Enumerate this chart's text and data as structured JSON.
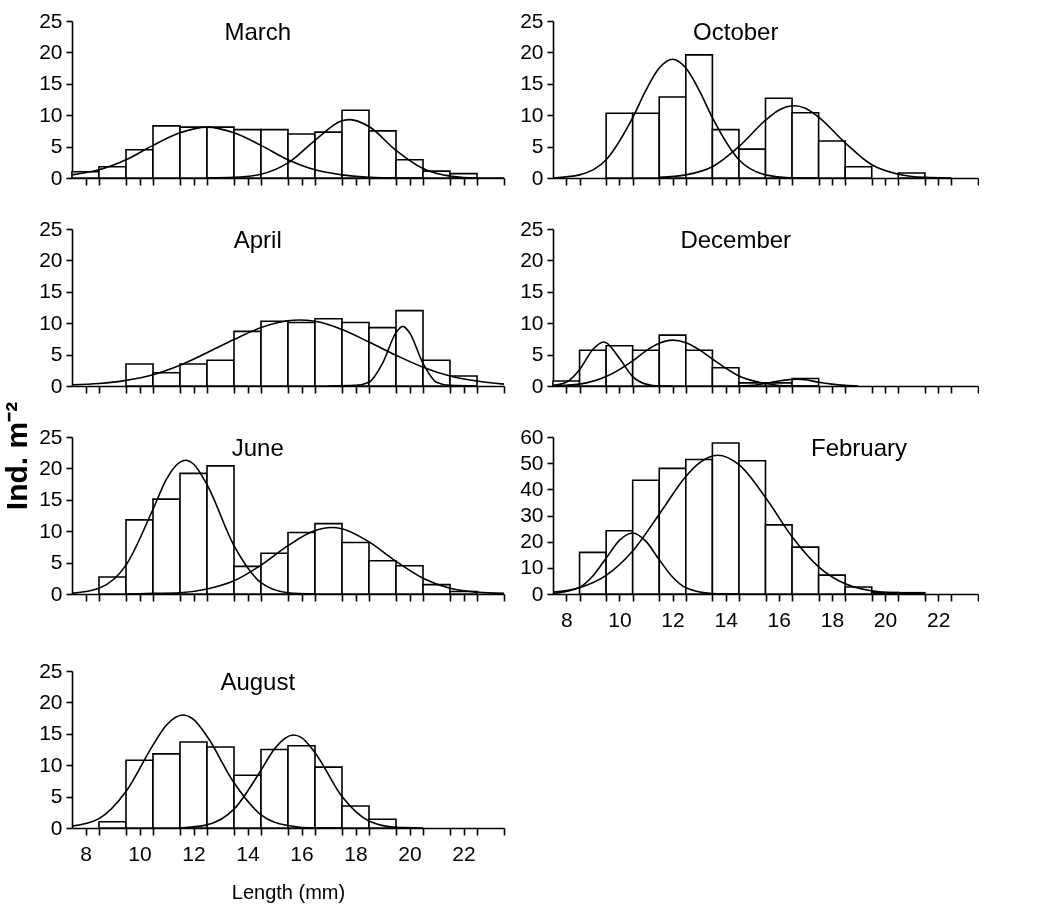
{
  "chart_data": [
    {
      "type": "histogram",
      "title": "March",
      "color": "#ffffff",
      "xlim": [
        7.5,
        23.5
      ],
      "ylim": [
        0,
        25
      ],
      "yticks": [
        0,
        5,
        10,
        15,
        20,
        25
      ],
      "tick_labels": "y",
      "xticks": [
        8,
        10,
        12,
        14,
        16,
        18,
        20,
        22,
        {
          "value": 8.5,
          "label": null
        },
        {
          "value": 9.5,
          "label": null
        },
        {
          "value": 10.5,
          "label": null
        },
        {
          "value": 11.5,
          "label": null
        },
        {
          "value": 12.5,
          "label": null
        },
        {
          "value": 13.5,
          "label": null
        },
        {
          "value": 14.5,
          "label": null
        },
        {
          "value": 15.5,
          "label": null
        },
        {
          "value": 16.5,
          "label": null
        },
        {
          "value": 17.5,
          "label": null
        },
        {
          "value": 18.5,
          "label": null
        },
        {
          "value": 19.5,
          "label": null
        },
        {
          "value": 20.5,
          "label": null
        },
        {
          "value": 21.5,
          "label": null
        },
        {
          "value": 22.5,
          "label": null
        },
        {
          "value": 23.5,
          "label": null
        }
      ],
      "bins": [
        7.5,
        8.5,
        9.5,
        10.5,
        11.5,
        12.5,
        13.5,
        14.5,
        15.5,
        16.5,
        17.5,
        18.5,
        19.5,
        20.5,
        21.5,
        22.5,
        23.5
      ],
      "values": [
        1.0,
        1.8,
        4.5,
        8.3,
        8.1,
        8.1,
        7.7,
        7.7,
        7.0,
        7.3,
        10.8,
        7.5,
        2.9,
        1.1,
        0.7,
        0
      ],
      "series": [
        {
          "type": "line",
          "color": "#000000",
          "x": [
            7.5,
            8.5,
            9.5,
            10.5,
            11.5,
            12.5,
            13.5,
            14.5,
            15.5,
            16.5,
            17.5,
            18.5,
            19.5,
            20.5
          ],
          "values": [
            0.5,
            1.3,
            2.9,
            5.2,
            7.2,
            8.1,
            7.2,
            5.2,
            2.9,
            1.3,
            0.5,
            0.1,
            0,
            0
          ]
        },
        {
          "type": "line",
          "color": "#000000",
          "x": [
            12.5,
            13.5,
            14.5,
            15.5,
            16.5,
            17.5,
            17.8,
            18.5,
            19.5,
            20.5,
            21.5,
            22.5,
            23.5
          ],
          "values": [
            0,
            0.1,
            0.6,
            2.4,
            6.0,
            9.1,
            9.3,
            8.2,
            4.4,
            1.5,
            0.3,
            0,
            0
          ]
        }
      ]
    },
    {
      "type": "histogram",
      "title": "October",
      "color": "#ffffff",
      "xlim": [
        7.5,
        23.5
      ],
      "ylim": [
        0,
        25
      ],
      "yticks": [
        0,
        5,
        10,
        15,
        20,
        25
      ],
      "tick_labels": "y",
      "xticks": [
        8,
        10,
        12,
        14,
        16,
        18,
        20,
        22,
        {
          "value": 8.5,
          "label": null
        },
        {
          "value": 9.5,
          "label": null
        },
        {
          "value": 10.5,
          "label": null
        },
        {
          "value": 11.5,
          "label": null
        },
        {
          "value": 12.5,
          "label": null
        },
        {
          "value": 13.5,
          "label": null
        },
        {
          "value": 14.5,
          "label": null
        },
        {
          "value": 15.5,
          "label": null
        },
        {
          "value": 16.5,
          "label": null
        },
        {
          "value": 17.5,
          "label": null
        },
        {
          "value": 18.5,
          "label": null
        },
        {
          "value": 19.5,
          "label": null
        },
        {
          "value": 20.5,
          "label": null
        },
        {
          "value": 21.5,
          "label": null
        },
        {
          "value": 22.5,
          "label": null
        },
        {
          "value": 23.5,
          "label": null
        }
      ],
      "bins": [
        7.5,
        8.5,
        9.5,
        10.5,
        11.5,
        12.5,
        13.5,
        14.5,
        15.5,
        16.5,
        17.5,
        18.5,
        19.5,
        20.5,
        21.5,
        22.5,
        23.5
      ],
      "values": [
        0,
        0,
        10.3,
        10.3,
        12.9,
        19.6,
        7.7,
        4.6,
        12.7,
        10.4,
        5.9,
        1.8,
        0,
        0.8,
        0,
        0
      ],
      "series": [
        {
          "type": "line",
          "color": "#000000",
          "x": [
            7.5,
            8.5,
            9.5,
            10.5,
            11.0,
            11.5,
            12.0,
            12.5,
            13.0,
            13.5,
            14.5,
            15.5,
            16.5,
            17.5
          ],
          "values": [
            0,
            0.5,
            2.9,
            9.6,
            14.0,
            17.5,
            18.9,
            17.5,
            14.0,
            9.6,
            2.9,
            0.5,
            0,
            0
          ]
        },
        {
          "type": "line",
          "color": "#000000",
          "x": [
            11.5,
            12.5,
            13.5,
            14.5,
            15.5,
            16.0,
            16.6,
            17.0,
            17.5,
            18.5,
            19.5,
            20.5,
            21.5,
            22.5
          ],
          "values": [
            0.1,
            0.5,
            1.8,
            5.0,
            9.2,
            10.8,
            11.5,
            11.1,
            9.7,
            5.6,
            2.1,
            0.6,
            0.1,
            0
          ]
        }
      ]
    },
    {
      "type": "histogram",
      "title": "April",
      "color": "#ffffff",
      "xlim": [
        7.5,
        23.5
      ],
      "ylim": [
        0,
        25
      ],
      "yticks": [
        0,
        5,
        10,
        15,
        20,
        25
      ],
      "tick_labels": "y",
      "xticks": [
        8,
        10,
        12,
        14,
        16,
        18,
        20,
        22,
        {
          "value": 8.5,
          "label": null
        },
        {
          "value": 9.5,
          "label": null
        },
        {
          "value": 10.5,
          "label": null
        },
        {
          "value": 11.5,
          "label": null
        },
        {
          "value": 12.5,
          "label": null
        },
        {
          "value": 13.5,
          "label": null
        },
        {
          "value": 14.5,
          "label": null
        },
        {
          "value": 15.5,
          "label": null
        },
        {
          "value": 16.5,
          "label": null
        },
        {
          "value": 17.5,
          "label": null
        },
        {
          "value": 18.5,
          "label": null
        },
        {
          "value": 19.5,
          "label": null
        },
        {
          "value": 20.5,
          "label": null
        },
        {
          "value": 21.5,
          "label": null
        },
        {
          "value": 22.5,
          "label": null
        },
        {
          "value": 23.5,
          "label": null
        }
      ],
      "bins": [
        7.5,
        8.5,
        9.5,
        10.5,
        11.5,
        12.5,
        13.5,
        14.5,
        15.5,
        16.5,
        17.5,
        18.5,
        19.5,
        20.5,
        21.5,
        22.5,
        23.5
      ],
      "values": [
        0,
        0,
        3.5,
        2.1,
        3.5,
        4.1,
        8.7,
        10.3,
        10.1,
        10.7,
        10.1,
        9.3,
        12.0,
        4.1,
        1.6,
        0
      ],
      "series": [
        {
          "type": "line",
          "color": "#000000",
          "x": [
            7.5,
            8.5,
            9.5,
            10.5,
            11.5,
            12.5,
            13.5,
            14.5,
            15.5,
            15.9,
            16.5,
            17.5,
            18.5,
            19.5,
            20.5,
            21.5,
            22.5,
            23.5
          ],
          "values": [
            0.2,
            0.4,
            0.9,
            1.8,
            3.3,
            5.3,
            7.4,
            9.3,
            10.4,
            10.5,
            10.3,
            9.0,
            7.0,
            4.9,
            3.0,
            1.6,
            0.8,
            0.3
          ]
        },
        {
          "type": "line",
          "color": "#000000",
          "x": [
            17.0,
            18.0,
            18.5,
            19.0,
            19.5,
            19.75,
            20.0,
            20.5,
            21.0,
            21.5,
            22.5
          ],
          "values": [
            0,
            0.1,
            0.6,
            3.6,
            8.5,
            9.5,
            8.5,
            3.6,
            0.6,
            0.1,
            0
          ]
        }
      ]
    },
    {
      "type": "histogram",
      "title": "December",
      "color": "#ffffff",
      "xlim": [
        7.5,
        23.5
      ],
      "ylim": [
        0,
        25
      ],
      "yticks": [
        0,
        5,
        10,
        15,
        20,
        25
      ],
      "tick_labels": "y",
      "xticks": [
        8,
        10,
        12,
        14,
        16,
        18,
        20,
        22,
        {
          "value": 8.5,
          "label": null
        },
        {
          "value": 9.5,
          "label": null
        },
        {
          "value": 10.5,
          "label": null
        },
        {
          "value": 11.5,
          "label": null
        },
        {
          "value": 12.5,
          "label": null
        },
        {
          "value": 13.5,
          "label": null
        },
        {
          "value": 14.5,
          "label": null
        },
        {
          "value": 15.5,
          "label": null
        },
        {
          "value": 16.5,
          "label": null
        },
        {
          "value": 17.5,
          "label": null
        },
        {
          "value": 18.5,
          "label": null
        },
        {
          "value": 19.5,
          "label": null
        },
        {
          "value": 20.5,
          "label": null
        },
        {
          "value": 21.5,
          "label": null
        },
        {
          "value": 22.5,
          "label": null
        },
        {
          "value": 23.5,
          "label": null
        }
      ],
      "bins": [
        7.5,
        8.5,
        9.5,
        10.5,
        11.5,
        12.5,
        13.5,
        14.5,
        15.5,
        16.5,
        17.5,
        18.5,
        19.5,
        20.5,
        21.5,
        22.5,
        23.5
      ],
      "values": [
        0.8,
        5.7,
        6.4,
        5.7,
        8.1,
        5.7,
        2.9,
        0.5,
        0.5,
        1.2,
        0,
        0,
        0,
        0,
        0,
        0
      ],
      "series": [
        {
          "type": "line",
          "color": "#000000",
          "x": [
            7.5,
            8.0,
            8.5,
            9.0,
            9.4,
            9.5,
            10.0,
            10.5,
            11.0,
            11.5,
            12.0
          ],
          "values": [
            0.1,
            0.6,
            2.6,
            5.8,
            7.0,
            6.9,
            4.4,
            1.5,
            0.3,
            0,
            0
          ]
        },
        {
          "type": "line",
          "color": "#000000",
          "x": [
            7.5,
            8.5,
            9.5,
            10.5,
            11.0,
            11.5,
            12.0,
            12.5,
            13.0,
            13.5,
            14.5,
            15.5,
            16.5,
            17.5
          ],
          "values": [
            0,
            0.3,
            1.5,
            4.0,
            5.6,
            6.8,
            7.3,
            6.9,
            5.8,
            4.3,
            1.6,
            0.4,
            0,
            0
          ]
        },
        {
          "type": "line",
          "color": "#000000",
          "x": [
            14.5,
            15.0,
            15.5,
            16.0,
            16.7,
            17.0,
            17.5,
            18.0,
            18.5,
            19.0
          ],
          "values": [
            0,
            0.1,
            0.4,
            0.8,
            1.1,
            1.0,
            0.6,
            0.3,
            0.1,
            0
          ]
        }
      ]
    },
    {
      "type": "histogram",
      "title": "June",
      "color": "#ffffff",
      "ylabel": "Ind. m⁻²",
      "xlim": [
        7.5,
        23.5
      ],
      "ylim": [
        0,
        25
      ],
      "yticks": [
        0,
        5,
        10,
        15,
        20,
        25
      ],
      "tick_labels": "y",
      "xticks": [
        8,
        10,
        12,
        14,
        16,
        18,
        20,
        22,
        {
          "value": 8.5,
          "label": null
        },
        {
          "value": 9.5,
          "label": null
        },
        {
          "value": 10.5,
          "label": null
        },
        {
          "value": 11.5,
          "label": null
        },
        {
          "value": 12.5,
          "label": null
        },
        {
          "value": 13.5,
          "label": null
        },
        {
          "value": 14.5,
          "label": null
        },
        {
          "value": 15.5,
          "label": null
        },
        {
          "value": 16.5,
          "label": null
        },
        {
          "value": 17.5,
          "label": null
        },
        {
          "value": 18.5,
          "label": null
        },
        {
          "value": 19.5,
          "label": null
        },
        {
          "value": 20.5,
          "label": null
        },
        {
          "value": 21.5,
          "label": null
        },
        {
          "value": 22.5,
          "label": null
        },
        {
          "value": 23.5,
          "label": null
        }
      ],
      "bins": [
        7.5,
        8.5,
        9.5,
        10.5,
        11.5,
        12.5,
        13.5,
        14.5,
        15.5,
        16.5,
        17.5,
        18.5,
        19.5,
        20.5,
        21.5,
        22.5,
        23.5
      ],
      "values": [
        0,
        2.7,
        11.8,
        15.1,
        19.2,
        20.4,
        4.4,
        6.5,
        9.8,
        11.2,
        8.2,
        5.3,
        4.5,
        1.5,
        0.4,
        0
      ],
      "series": [
        {
          "type": "line",
          "color": "#000000",
          "x": [
            7.5,
            8.5,
            9.5,
            10.5,
            11.0,
            11.5,
            11.7,
            12.0,
            12.5,
            13.5,
            14.5,
            15.5,
            16.5
          ],
          "values": [
            0.1,
            0.9,
            4.6,
            13.5,
            18.3,
            21.0,
            21.3,
            20.7,
            17.4,
            7.7,
            1.8,
            0.2,
            0
          ]
        },
        {
          "type": "line",
          "color": "#000000",
          "x": [
            9.5,
            10.5,
            11.5,
            12.5,
            13.5,
            14.5,
            15.5,
            16.5,
            17.1,
            17.5,
            18.5,
            19.5,
            20.5,
            21.5,
            22.5,
            23.5
          ],
          "values": [
            0,
            0.1,
            0.2,
            0.8,
            2.1,
            4.6,
            7.7,
            10.1,
            10.6,
            10.4,
            8.3,
            5.2,
            2.5,
            0.9,
            0.3,
            0.1
          ]
        }
      ]
    },
    {
      "type": "histogram",
      "title": "February",
      "color": "#ffffff",
      "xlim": [
        7.5,
        23.5
      ],
      "ylim": [
        0,
        60
      ],
      "yticks": [
        0,
        10,
        20,
        30,
        40,
        50,
        60
      ],
      "xticks": [
        8,
        10,
        12,
        14,
        16,
        18,
        20,
        22,
        {
          "value": 8.5,
          "label": null
        },
        {
          "value": 9.5,
          "label": null
        },
        {
          "value": 10.5,
          "label": null
        },
        {
          "value": 11.5,
          "label": null
        },
        {
          "value": 12.5,
          "label": null
        },
        {
          "value": 13.5,
          "label": null
        },
        {
          "value": 14.5,
          "label": null
        },
        {
          "value": 15.5,
          "label": null
        },
        {
          "value": 16.5,
          "label": null
        },
        {
          "value": 17.5,
          "label": null
        },
        {
          "value": 18.5,
          "label": null
        },
        {
          "value": 19.5,
          "label": null
        },
        {
          "value": 20.5,
          "label": null
        },
        {
          "value": 21.5,
          "label": null
        },
        {
          "value": 22.5,
          "label": null
        },
        {
          "value": 23.5,
          "label": null
        }
      ],
      "bins": [
        7.5,
        8.5,
        9.5,
        10.5,
        11.5,
        12.5,
        13.5,
        14.5,
        15.5,
        16.5,
        17.5,
        18.5,
        19.5,
        20.5,
        21.5,
        22.5,
        23.5
      ],
      "values": [
        0,
        15.9,
        24.2,
        43.5,
        48.0,
        51.4,
        57.7,
        50.9,
        26.4,
        17.9,
        7.2,
        2.7,
        0.6,
        0.5,
        0,
        0
      ],
      "series": [
        {
          "type": "line",
          "color": "#000000",
          "x": [
            7.5,
            8.5,
            9.5,
            10.5,
            11.5,
            12.5,
            13.0,
            13.7,
            14.5,
            15.5,
            16.5,
            17.5,
            18.5,
            19.5,
            20.5,
            21.5
          ],
          "values": [
            0.7,
            2.4,
            7.1,
            16.4,
            30.5,
            44.9,
            50.0,
            53.0,
            49.4,
            36.9,
            21.9,
            10.4,
            3.9,
            1.2,
            0.3,
            0
          ]
        },
        {
          "type": "line",
          "color": "#000000",
          "x": [
            7.5,
            8.5,
            9.0,
            9.5,
            10.0,
            10.5,
            11.0,
            11.5,
            12.0,
            12.5,
            13.5,
            14.5
          ],
          "values": [
            0.2,
            2.6,
            6.9,
            13.7,
            20.5,
            23.3,
            20.1,
            13.1,
            6.5,
            2.4,
            0.2,
            0
          ]
        }
      ]
    },
    {
      "type": "histogram",
      "title": "August",
      "color": "#ffffff",
      "xlabel": "Length (mm)",
      "xlim": [
        7.5,
        23.5
      ],
      "ylim": [
        0,
        25
      ],
      "yticks": [
        0,
        5,
        10,
        15,
        20,
        25
      ],
      "xticks": [
        8,
        10,
        12,
        14,
        16,
        18,
        20,
        22,
        {
          "value": 8.5,
          "label": null
        },
        {
          "value": 9.5,
          "label": null
        },
        {
          "value": 10.5,
          "label": null
        },
        {
          "value": 11.5,
          "label": null
        },
        {
          "value": 12.5,
          "label": null
        },
        {
          "value": 13.5,
          "label": null
        },
        {
          "value": 14.5,
          "label": null
        },
        {
          "value": 15.5,
          "label": null
        },
        {
          "value": 16.5,
          "label": null
        },
        {
          "value": 17.5,
          "label": null
        },
        {
          "value": 18.5,
          "label": null
        },
        {
          "value": 19.5,
          "label": null
        },
        {
          "value": 20.5,
          "label": null
        },
        {
          "value": 21.5,
          "label": null
        },
        {
          "value": 22.5,
          "label": null
        },
        {
          "value": 23.5,
          "label": null
        }
      ],
      "bins": [
        7.5,
        8.5,
        9.5,
        10.5,
        11.5,
        12.5,
        13.5,
        14.5,
        15.5,
        16.5,
        17.5,
        18.5,
        19.5,
        20.5,
        21.5,
        22.5,
        23.5
      ],
      "values": [
        0,
        1.0,
        10.8,
        11.8,
        13.7,
        12.9,
        8.4,
        12.5,
        13.1,
        9.7,
        3.5,
        1.4,
        0,
        0,
        0,
        0
      ],
      "series": [
        {
          "type": "line",
          "color": "#000000",
          "x": [
            7.5,
            8.5,
            9.5,
            10.5,
            11.0,
            11.6,
            12.0,
            12.5,
            13.5,
            14.5,
            15.5,
            16.5,
            17.5
          ],
          "values": [
            0.3,
            1.5,
            5.8,
            13.2,
            16.4,
            18.0,
            17.3,
            14.6,
            7.2,
            2.1,
            0.4,
            0,
            0
          ]
        },
        {
          "type": "line",
          "color": "#000000",
          "x": [
            11.5,
            12.5,
            13.5,
            14.5,
            15.0,
            15.7,
            16.0,
            16.5,
            17.5,
            18.5,
            19.5,
            20.5
          ],
          "values": [
            0,
            0.5,
            3.0,
            9.2,
            12.6,
            14.8,
            14.4,
            12.0,
            5.0,
            1.1,
            0.1,
            0
          ]
        }
      ]
    }
  ]
}
